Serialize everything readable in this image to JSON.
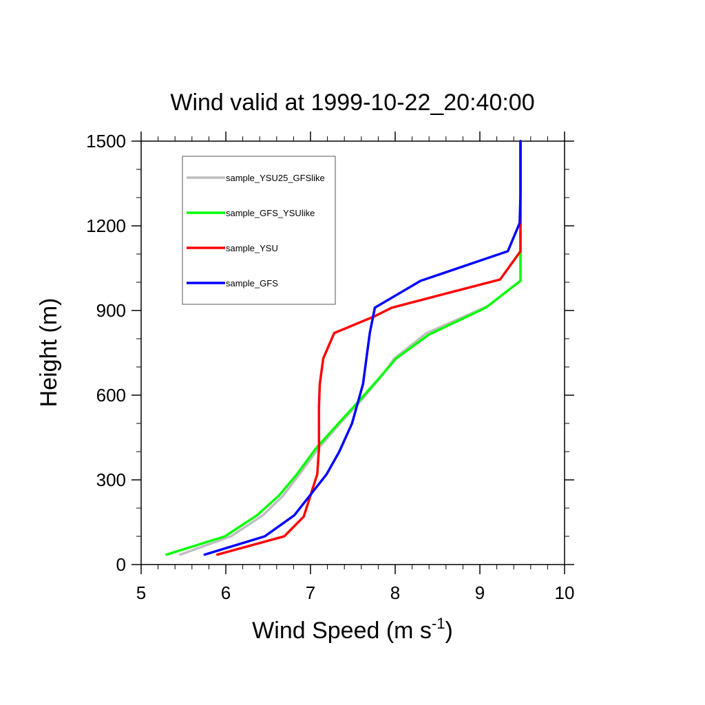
{
  "chart_data": {
    "type": "line",
    "title": "Wind valid at 1999-10-22_20:40:00",
    "xlabel": "Wind Speed (m s",
    "xlabel_sup": "-1",
    "xlabel_end": ")",
    "ylabel": "Height (m)",
    "xlim": [
      5,
      10
    ],
    "ylim": [
      0,
      1500
    ],
    "xticks": [
      5,
      6,
      7,
      8,
      9,
      10
    ],
    "yticks": [
      0,
      300,
      600,
      900,
      1200,
      1500
    ],
    "legend_position": "top-left",
    "grid": false,
    "series": [
      {
        "name": "sample_YSU25_GFSlike",
        "color": "#bebebe",
        "x": [
          5.46,
          6.06,
          6.44,
          6.68,
          6.87,
          7.09,
          7.35,
          7.61,
          7.82,
          7.99,
          8.37,
          9.09,
          9.48,
          9.48
        ],
        "y": [
          35,
          100,
          175,
          245,
          320,
          410,
          500,
          585,
          660,
          730,
          820,
          915,
          1005,
          1500
        ]
      },
      {
        "name": "sample_GFS_YSUlike",
        "color": "#00ff00",
        "x": [
          5.3,
          5.99,
          6.37,
          6.63,
          6.84,
          7.06,
          7.33,
          7.59,
          7.81,
          8.01,
          8.4,
          9.07,
          9.48,
          9.48
        ],
        "y": [
          35,
          100,
          175,
          245,
          320,
          410,
          500,
          585,
          660,
          730,
          815,
          910,
          1005,
          1500
        ]
      },
      {
        "name": "sample_YSU",
        "color": "#ff0000",
        "x": [
          5.9,
          6.69,
          6.92,
          7.08,
          7.1,
          7.1,
          7.11,
          7.15,
          7.28,
          7.76,
          7.96,
          9.24,
          9.48,
          9.48
        ],
        "y": [
          35,
          100,
          170,
          320,
          410,
          560,
          640,
          730,
          820,
          880,
          910,
          1010,
          1110,
          1500
        ]
      },
      {
        "name": "sample_GFS",
        "color": "#0000ff",
        "x": [
          5.75,
          6.46,
          6.81,
          7.19,
          7.34,
          7.49,
          7.62,
          7.7,
          7.76,
          8.3,
          9.33,
          9.47,
          9.48,
          9.48
        ],
        "y": [
          35,
          100,
          175,
          320,
          400,
          500,
          640,
          820,
          910,
          1005,
          1110,
          1210,
          1310,
          1500
        ]
      }
    ]
  }
}
